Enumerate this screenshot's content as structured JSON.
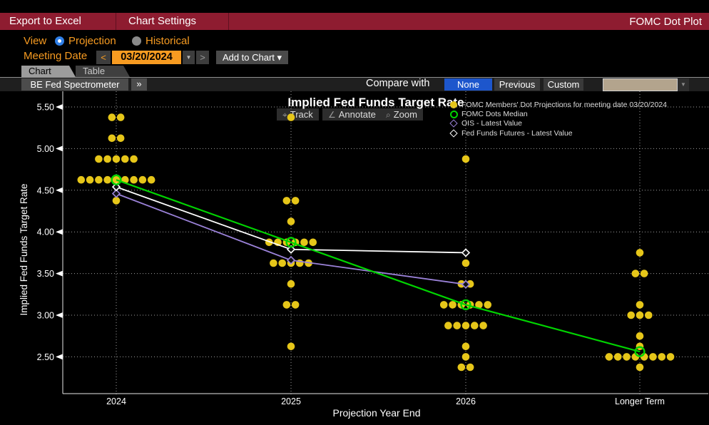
{
  "colors": {
    "menubar_red": "#8e1c30",
    "amber": "#f79b21",
    "selected_blue": "#1d56cc",
    "radio_blue": "#2f7fe8",
    "button_gray": "#4a4a4a",
    "dropdown_tan": "#b3a48d",
    "dot_yellow": "#e6c619",
    "median_green": "#00d400",
    "ois_purple": "#9b82d9",
    "futures_white": "#ffffff"
  },
  "titlebar": {
    "items": [
      "Export to Excel",
      "Chart Settings"
    ],
    "title": "FOMC Dot Plot"
  },
  "controls": {
    "view_label": "View",
    "options": [
      {
        "label": "Projection",
        "selected": true
      },
      {
        "label": "Historical",
        "selected": false
      }
    ],
    "meeting_date_label": "Meeting Date",
    "date_value": "03/20/2024",
    "prev": "<",
    "next": ">",
    "dropdown_arrow": "▼",
    "add_to_chart": "Add to Chart ▾"
  },
  "tabs": [
    {
      "label": "Chart",
      "active": true
    },
    {
      "label": "Table",
      "active": false
    }
  ],
  "toolbar": {
    "spectrometer": "BE Fed Spectrometer",
    "expand": "»",
    "compare_label": "Compare with",
    "options": [
      {
        "label": "None",
        "selected": true
      },
      {
        "label": "Previous",
        "selected": false
      },
      {
        "label": "Custom",
        "selected": false
      }
    ]
  },
  "chart_buttons": [
    {
      "icon": "⌖",
      "label": "Track"
    },
    {
      "icon": "∠",
      "label": "Annotate"
    },
    {
      "icon": "⌕",
      "label": "Zoom"
    }
  ],
  "chart_data": {
    "type": "scatter",
    "title": "Implied Fed Funds Target Rate",
    "xlabel": "Projection Year End",
    "ylabel": "Implied Fed Funds Target Rate",
    "categories": [
      "2024",
      "2025",
      "2026",
      "Longer Term"
    ],
    "y_ticks": [
      "5.50",
      "5.00",
      "4.50",
      "4.00",
      "3.50",
      "3.00",
      "2.50"
    ],
    "ylim": [
      2.06,
      5.69
    ],
    "grid": "dotted",
    "legend_position": "top-right",
    "dots_note": "each entry is [rate, number_of_dots] per projection year",
    "dots": [
      [
        [
          5.375,
          2
        ],
        [
          5.125,
          2
        ],
        [
          4.875,
          5
        ],
        [
          4.625,
          9
        ],
        [
          4.375,
          1
        ]
      ],
      [
        [
          5.375,
          1
        ],
        [
          4.375,
          2
        ],
        [
          4.125,
          1
        ],
        [
          3.875,
          6
        ],
        [
          3.625,
          5
        ],
        [
          3.375,
          1
        ],
        [
          3.125,
          2
        ],
        [
          2.625,
          1
        ]
      ],
      [
        [
          4.875,
          1
        ],
        [
          3.625,
          1
        ],
        [
          3.375,
          2
        ],
        [
          3.125,
          6
        ],
        [
          2.875,
          5
        ],
        [
          2.625,
          1
        ],
        [
          2.5,
          1
        ],
        [
          2.375,
          2
        ]
      ],
      [
        [
          3.75,
          1
        ],
        [
          3.5,
          2
        ],
        [
          3.125,
          1
        ],
        [
          3.0,
          3
        ],
        [
          2.75,
          1
        ],
        [
          2.625,
          1
        ],
        [
          2.5,
          8
        ],
        [
          2.375,
          1
        ]
      ]
    ],
    "series": [
      {
        "name": "FOMC Members' Dot Projections for meeting date 03/20/2024",
        "marker": "dot",
        "color": "#e6c619"
      },
      {
        "name": "FOMC Dots Median",
        "marker": "ring",
        "color": "#00d400",
        "values": [
          4.625,
          3.875,
          3.125,
          2.5625
        ]
      },
      {
        "name": "OIS - Latest Value",
        "marker": "diamond",
        "color": "#9b82d9",
        "values": [
          4.46,
          3.66,
          3.37,
          null
        ]
      },
      {
        "name": "Fed Funds Futures - Latest Value",
        "marker": "diamond",
        "color": "#ffffff",
        "values": [
          4.54,
          3.79,
          3.75,
          null
        ]
      }
    ]
  }
}
